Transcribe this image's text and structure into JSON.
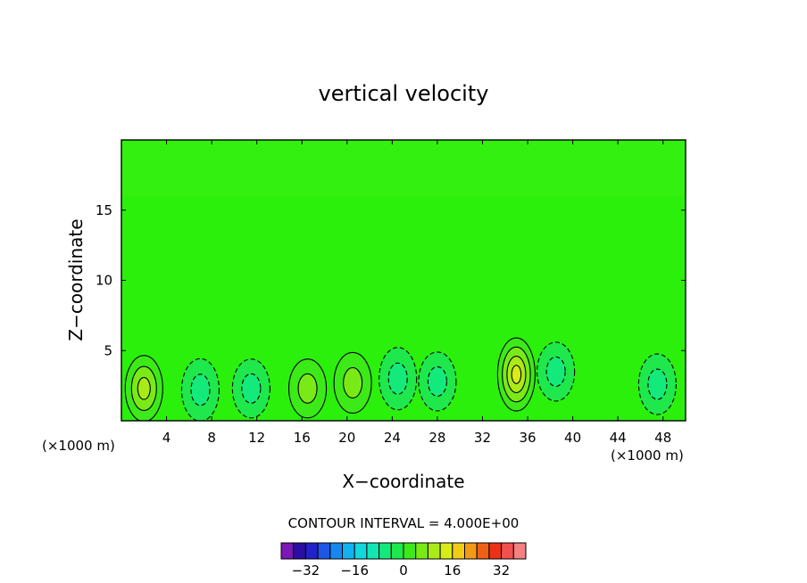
{
  "chart_data": {
    "type": "heatmap",
    "title": "vertical velocity",
    "xlabel": "X−coordinate",
    "ylabel": "Z−coordinate",
    "x_unit": "(×1000 m)",
    "z_unit": "(×1000 m)",
    "xlim": [
      0,
      50
    ],
    "ylim": [
      0,
      20
    ],
    "x_ticks": [
      4,
      8,
      12,
      16,
      20,
      24,
      28,
      32,
      36,
      40,
      44,
      48
    ],
    "y_ticks": [
      5,
      10,
      15
    ],
    "contour_interval_label": "CONTOUR INTERVAL = 4.000E+00",
    "colorbar": {
      "levels": [
        -40,
        -36,
        -32,
        -28,
        -24,
        -20,
        -16,
        -12,
        -8,
        -4,
        0,
        4,
        8,
        12,
        16,
        20,
        24,
        28,
        32,
        36,
        40
      ],
      "colors": [
        "#7a17b5",
        "#2a0fa0",
        "#2222c8",
        "#1e56e6",
        "#1787f0",
        "#12b2f2",
        "#10d8dc",
        "#10e8b4",
        "#14ea7c",
        "#1ee84c",
        "#3cea18",
        "#7aea16",
        "#aaea16",
        "#d8ec16",
        "#f2cc14",
        "#f29a14",
        "#f06014",
        "#ec3214",
        "#f05050",
        "#f48080"
      ],
      "tick_values": [
        "−32",
        "−16",
        "0",
        "16",
        "32"
      ]
    },
    "background_color": "#2af00c",
    "features": [
      {
        "kind": "updraft",
        "x": 2,
        "z": 2.3,
        "max": 9
      },
      {
        "kind": "downdraft",
        "x": 7,
        "z": 2.2,
        "min": -7
      },
      {
        "kind": "downdraft",
        "x": 11.5,
        "z": 2.3,
        "min": -5
      },
      {
        "kind": "updraft",
        "x": 16.5,
        "z": 2.3,
        "max": 5
      },
      {
        "kind": "updraft",
        "x": 20.5,
        "z": 2.7,
        "max": 6
      },
      {
        "kind": "downdraft",
        "x": 24.5,
        "z": 3.0,
        "min": -7
      },
      {
        "kind": "downdraft",
        "x": 28,
        "z": 2.8,
        "min": -5
      },
      {
        "kind": "updraft",
        "x": 35,
        "z": 3.3,
        "max": 13
      },
      {
        "kind": "downdraft",
        "x": 38.5,
        "z": 3.5,
        "min": -5
      },
      {
        "kind": "downdraft",
        "x": 47.5,
        "z": 2.6,
        "min": -6
      }
    ]
  }
}
